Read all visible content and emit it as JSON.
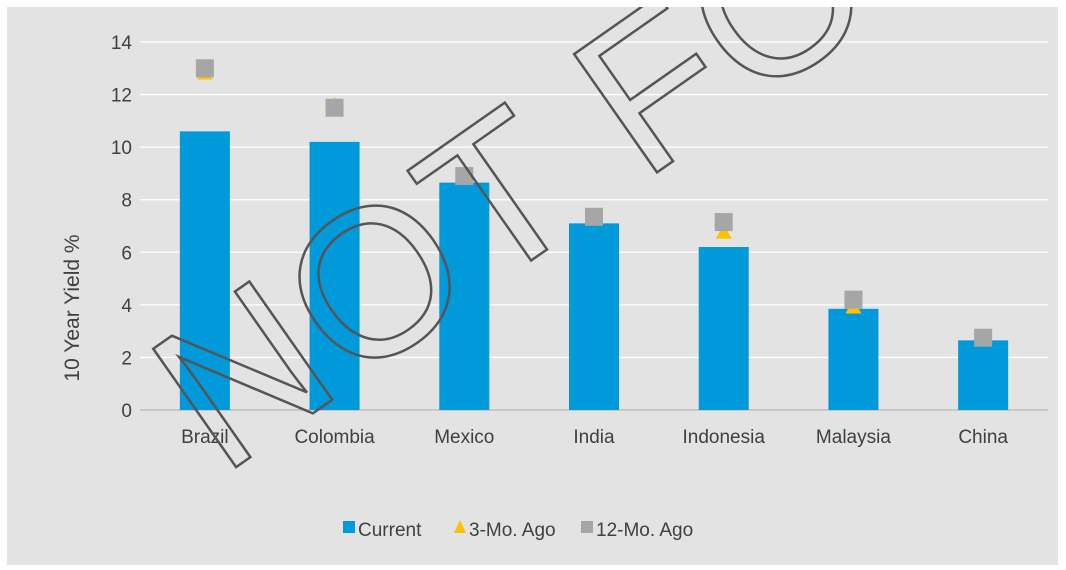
{
  "chart_data": {
    "type": "bar",
    "title": "",
    "xlabel": "",
    "ylabel": "10 Year Yield %",
    "ylim": [
      0,
      14
    ],
    "yticks": [
      0,
      2,
      4,
      6,
      8,
      10,
      12,
      14
    ],
    "grid": true,
    "legend_position": "bottom",
    "categories": [
      "Brazil",
      "Colombia",
      "Mexico",
      "India",
      "Indonesia",
      "Malaysia",
      "China"
    ],
    "series": [
      {
        "name": "Current",
        "kind": "bar",
        "marker": "bar",
        "color": "#009ada",
        "values": [
          10.6,
          10.2,
          8.65,
          7.1,
          6.2,
          3.85,
          2.65
        ]
      },
      {
        "name": "3-Mo. Ago",
        "kind": "marker",
        "marker": "triangle",
        "color": "#ffc000",
        "values": [
          12.8,
          11.6,
          8.8,
          7.25,
          6.75,
          3.9,
          2.75
        ]
      },
      {
        "name": "12-Mo. Ago",
        "kind": "marker",
        "marker": "square",
        "color": "#a6a6a6",
        "values": [
          13.0,
          11.5,
          8.9,
          7.35,
          7.15,
          4.2,
          2.75
        ]
      }
    ],
    "watermark": "NOT FOR RED"
  }
}
